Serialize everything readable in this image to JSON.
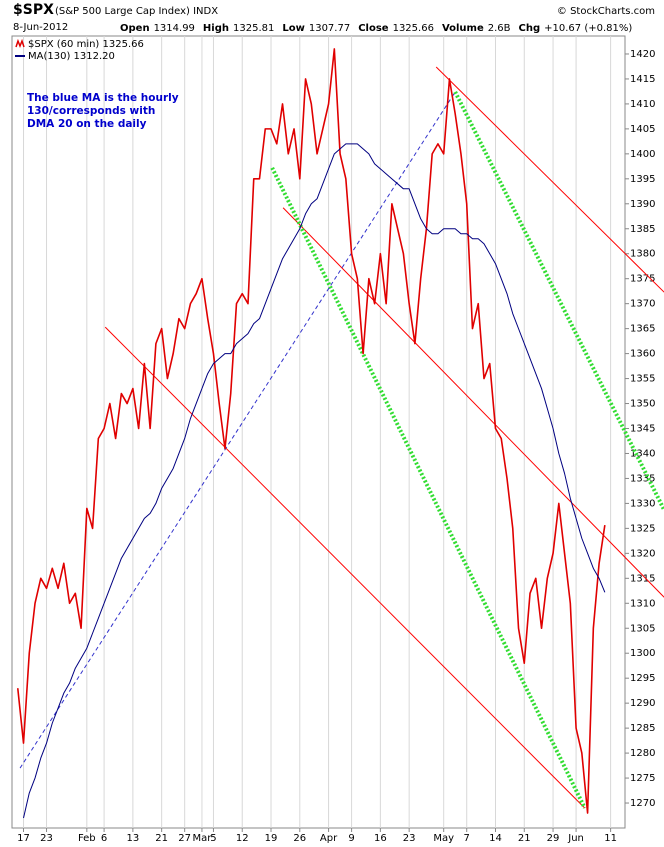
{
  "chart_data": {
    "type": "line",
    "title": "$SPX",
    "subtitle": "(S&P 500 Large Cap Index) INDX",
    "source": "© StockCharts.com",
    "date": "8-Jun-2012",
    "stats": [
      {
        "label": "Open",
        "value": "1314.99"
      },
      {
        "label": "High",
        "value": "1325.81"
      },
      {
        "label": "Low",
        "value": "1307.77"
      },
      {
        "label": "Close",
        "value": "1325.66"
      },
      {
        "label": "Volume",
        "value": "2.6B"
      },
      {
        "label": "Chg",
        "value": "+10.67 (+0.81%)"
      }
    ],
    "annotation": [
      "The blue MA is the hourly",
      "130/corresponds with",
      "DMA 20 on the daily"
    ],
    "annotation_color": "#0000cc",
    "grid": "x",
    "xlim": [
      -2,
      104.5
    ],
    "ylim": [
      1265,
      1423.6
    ],
    "xticks": [
      {
        "value": 0,
        "label": "17"
      },
      {
        "value": 4,
        "label": "23"
      },
      {
        "value": 11,
        "label": "Feb"
      },
      {
        "value": 14,
        "label": "6"
      },
      {
        "value": 19,
        "label": "13"
      },
      {
        "value": 24,
        "label": "21"
      },
      {
        "value": 28,
        "label": "27"
      },
      {
        "value": 31,
        "label": "Mar"
      },
      {
        "value": 33,
        "label": "5"
      },
      {
        "value": 38,
        "label": "12"
      },
      {
        "value": 43,
        "label": "19"
      },
      {
        "value": 48,
        "label": "26"
      },
      {
        "value": 53,
        "label": "Apr"
      },
      {
        "value": 57,
        "label": "9"
      },
      {
        "value": 62,
        "label": "16"
      },
      {
        "value": 67,
        "label": "23"
      },
      {
        "value": 73,
        "label": "May"
      },
      {
        "value": 77,
        "label": "7"
      },
      {
        "value": 82,
        "label": "14"
      },
      {
        "value": 87,
        "label": "21"
      },
      {
        "value": 92,
        "label": "29"
      },
      {
        "value": 96,
        "label": "Jun"
      },
      {
        "value": 102,
        "label": "11"
      }
    ],
    "yticks": [
      1270,
      1275,
      1280,
      1285,
      1290,
      1295,
      1300,
      1305,
      1310,
      1315,
      1320,
      1325,
      1330,
      1335,
      1340,
      1345,
      1350,
      1355,
      1360,
      1365,
      1370,
      1375,
      1380,
      1385,
      1390,
      1395,
      1400,
      1405,
      1410,
      1415,
      1420
    ],
    "x": [
      -1,
      0,
      1,
      2,
      3,
      4,
      5,
      6,
      7,
      8,
      9,
      10,
      11,
      12,
      13,
      14,
      15,
      16,
      17,
      18,
      19,
      20,
      21,
      22,
      23,
      24,
      25,
      26,
      27,
      28,
      29,
      30,
      31,
      32,
      33,
      34,
      35,
      36,
      37,
      38,
      39,
      40,
      41,
      42,
      43,
      44,
      45,
      46,
      47,
      48,
      49,
      50,
      51,
      52,
      53,
      54,
      55,
      56,
      57,
      58,
      59,
      60,
      61,
      62,
      63,
      64,
      65,
      66,
      67,
      68,
      69,
      70,
      71,
      72,
      73,
      74,
      75,
      76,
      77,
      78,
      79,
      80,
      81,
      82,
      83,
      84,
      85,
      86,
      87,
      88,
      89,
      90,
      91,
      92,
      93,
      94,
      95,
      96,
      97,
      98,
      99,
      100,
      101
    ],
    "series": [
      {
        "name": "$SPX (60 min) 1325.66",
        "color": "#e00000",
        "width": 1.6,
        "values": [
          1293,
          1282,
          1300,
          1310,
          1315,
          1313,
          1317,
          1313,
          1318,
          1310,
          1312,
          1305,
          1329,
          1325,
          1343,
          1345,
          1350,
          1343,
          1352,
          1350,
          1353,
          1345,
          1358,
          1345,
          1362,
          1365,
          1355,
          1360,
          1367,
          1365,
          1370,
          1372,
          1375,
          1367,
          1360,
          1350,
          1341,
          1352,
          1370,
          1372,
          1370,
          1395,
          1395,
          1405,
          1405,
          1402,
          1410,
          1400,
          1405,
          1395,
          1415,
          1410,
          1400,
          1405,
          1410,
          1421,
          1400,
          1395,
          1380,
          1375,
          1360,
          1375,
          1370,
          1380,
          1370,
          1390,
          1385,
          1380,
          1370,
          1362,
          1375,
          1385,
          1400,
          1402,
          1400,
          1415,
          1408,
          1400,
          1390,
          1365,
          1370,
          1355,
          1358,
          1345,
          1343,
          1335,
          1325,
          1305,
          1298,
          1312,
          1315,
          1305,
          1315,
          1320,
          1330,
          1320,
          1310,
          1285,
          1280,
          1268,
          1305,
          1318,
          1325.66
        ]
      },
      {
        "name": "MA(130) 1312.20",
        "color": "#000080",
        "width": 1,
        "values": [
          null,
          1267,
          1272,
          1275,
          1279,
          1282,
          1286,
          1289,
          1292,
          1294,
          1297,
          1299,
          1301,
          1304,
          1307,
          1310,
          1313,
          1316,
          1319,
          1321,
          1323,
          1325,
          1327,
          1328,
          1330,
          1333,
          1335,
          1337,
          1340,
          1343,
          1347,
          1350,
          1353,
          1356,
          1358,
          1359,
          1360,
          1360,
          1362,
          1363,
          1364,
          1366,
          1367,
          1370,
          1373,
          1376,
          1379,
          1381,
          1383,
          1385,
          1388,
          1390,
          1391,
          1394,
          1397,
          1400,
          1401,
          1402,
          1402,
          1402,
          1401,
          1400,
          1398,
          1397,
          1396,
          1395,
          1394,
          1393,
          1393,
          1390,
          1387,
          1385,
          1384,
          1384,
          1385,
          1385,
          1385,
          1384,
          1384,
          1383,
          1383,
          1382,
          1380,
          1378,
          1375,
          1372,
          1368,
          1365,
          1362,
          1359,
          1356,
          1353,
          1349,
          1345,
          1340,
          1336,
          1331,
          1327,
          1323,
          1320,
          1317,
          1315,
          1312.2
        ]
      }
    ],
    "trendlines": [
      {
        "color": "#ff0000",
        "style": "solid",
        "points": [
          [
            14.2,
            1365.3
          ],
          [
            97.5,
            1269
          ]
        ]
      },
      {
        "color": "#ff0000",
        "style": "solid",
        "points": [
          [
            45.1,
            1389.2
          ],
          [
            111.3,
            1311.2
          ]
        ]
      },
      {
        "color": "#ff0000",
        "style": "solid",
        "points": [
          [
            71.7,
            1417.4
          ],
          [
            111.3,
            1372.3
          ]
        ]
      },
      {
        "color": "#33dd33",
        "style": "dotted",
        "points": [
          [
            43.2,
            1397.2
          ],
          [
            97.5,
            1269
          ]
        ]
      },
      {
        "color": "#33dd33",
        "style": "dotted",
        "points": [
          [
            75,
            1412.4
          ],
          [
            111.3,
            1328.7
          ]
        ]
      },
      {
        "color": "#3333cc",
        "style": "dashed",
        "points": [
          [
            -0.6,
            1277
          ],
          [
            75,
            1412.4
          ]
        ]
      }
    ]
  }
}
